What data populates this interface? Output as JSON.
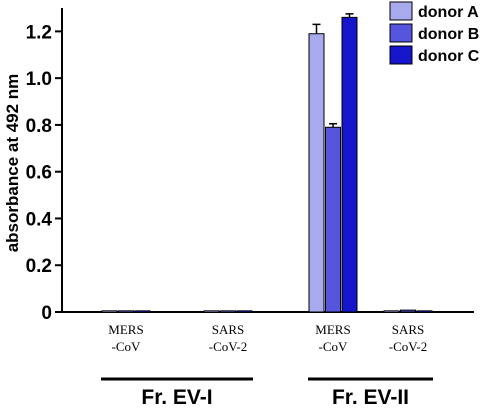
{
  "chart_data": {
    "type": "bar",
    "ylabel": "absorbance at 492 nm",
    "ylim": [
      0,
      1.3
    ],
    "yticks": [
      "0",
      "0.2",
      "0.4",
      "0.6",
      "0.8",
      "1.0",
      "1.2"
    ],
    "grid": false,
    "legend_position": "top-right",
    "categories": [
      [
        "MERS",
        "-CoV"
      ],
      [
        "SARS",
        "-CoV-2"
      ],
      [
        "MERS",
        "-CoV"
      ],
      [
        "SARS",
        "-CoV-2"
      ]
    ],
    "groups": [
      {
        "label": "Fr. EV-I",
        "categories": [
          0,
          1
        ]
      },
      {
        "label": "Fr. EV-II",
        "categories": [
          2,
          3
        ]
      }
    ],
    "series": [
      {
        "name": "donor A",
        "color": "#a8aaee",
        "values": [
          0.005,
          0.005,
          1.19,
          0.005
        ],
        "errors": [
          0,
          0,
          0.04,
          0
        ]
      },
      {
        "name": "donor B",
        "color": "#5555dd",
        "values": [
          0.005,
          0.005,
          0.79,
          0.008
        ],
        "errors": [
          0,
          0,
          0.015,
          0
        ]
      },
      {
        "name": "donor C",
        "color": "#1515cc",
        "values": [
          0.005,
          0.005,
          1.26,
          0.005
        ],
        "errors": [
          0,
          0,
          0.015,
          0
        ]
      }
    ]
  }
}
